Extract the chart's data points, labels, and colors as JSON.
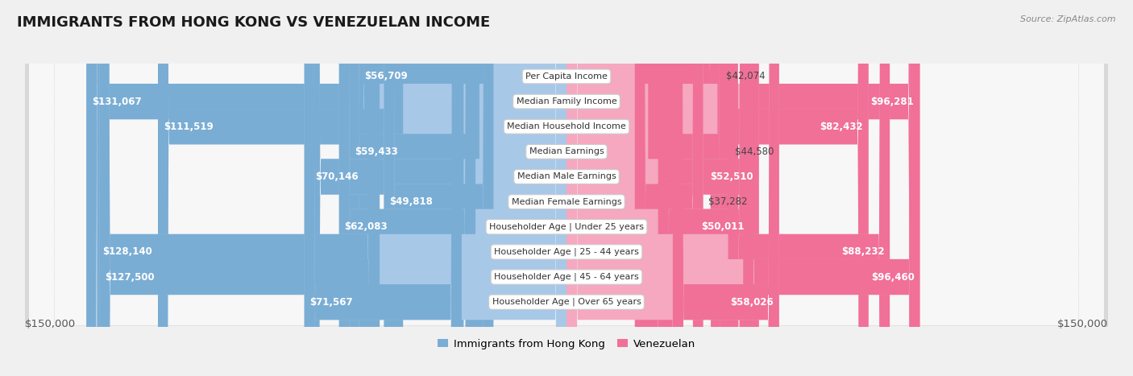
{
  "title": "IMMIGRANTS FROM HONG KONG VS VENEZUELAN INCOME",
  "source": "Source: ZipAtlas.com",
  "categories": [
    "Per Capita Income",
    "Median Family Income",
    "Median Household Income",
    "Median Earnings",
    "Median Male Earnings",
    "Median Female Earnings",
    "Householder Age | Under 25 years",
    "Householder Age | 25 - 44 years",
    "Householder Age | 45 - 64 years",
    "Householder Age | Over 65 years"
  ],
  "hk_values": [
    56709,
    131067,
    111519,
    59433,
    70146,
    49818,
    62083,
    128140,
    127500,
    71567
  ],
  "ven_values": [
    42074,
    96281,
    82432,
    44580,
    52510,
    37282,
    50011,
    88232,
    96460,
    58026
  ],
  "hk_color": "#7aadd4",
  "hk_color_light": "#a8c8e8",
  "ven_color": "#f07098",
  "ven_color_light": "#f5a8c0",
  "hk_label": "Immigrants from Hong Kong",
  "ven_label": "Venezuelan",
  "x_max": 150000,
  "background_color": "#f0f0f0",
  "inside_threshold": 0.3,
  "title_fontsize": 13,
  "source_fontsize": 8,
  "axis_fontsize": 9.5,
  "value_fontsize": 8.5,
  "category_fontsize": 8.0
}
